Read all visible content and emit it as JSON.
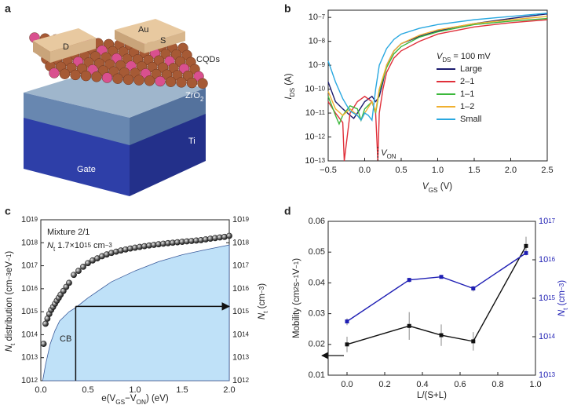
{
  "panel_labels": [
    "a",
    "b",
    "c",
    "d"
  ],
  "illustration": {
    "electrode_left": "D",
    "electrode_metal": "Au",
    "electrode_right": "S",
    "film": "CQDs",
    "dielectric": [
      "ZrO",
      "2"
    ],
    "gate": "Gate",
    "gate_metal": "Ti"
  },
  "chart_data": [
    {
      "type": "line",
      "xlabel": [
        "V",
        "GS",
        " (V)"
      ],
      "ylabel": [
        "I",
        "DS",
        " (A)"
      ],
      "ylog": true,
      "xlim": [
        -0.5,
        2.5
      ],
      "xticks": [
        {
          "value": -0.5,
          "label": "−0.5"
        },
        {
          "value": 0,
          "label": "0.0"
        },
        {
          "value": 0.5,
          "label": "0.5"
        },
        {
          "value": 1,
          "label": "1.0"
        },
        {
          "value": 1.5,
          "label": "1.5"
        },
        {
          "value": 2,
          "label": "2.0"
        },
        {
          "value": 2.5,
          "label": "2.5"
        }
      ],
      "ylim": [
        1e-13,
        2e-07
      ],
      "yticks": [
        {
          "value": 1e-13,
          "label": [
            "10",
            "−13"
          ]
        },
        {
          "value": 1e-12,
          "label": [
            "10",
            "−12"
          ]
        },
        {
          "value": 1e-11,
          "label": [
            "10",
            "−11"
          ]
        },
        {
          "value": 1e-10,
          "label": [
            "10",
            "−10"
          ]
        },
        {
          "value": 1e-09,
          "label": [
            "10",
            "−9"
          ]
        },
        {
          "value": 1e-08,
          "label": [
            "10",
            "−8"
          ]
        },
        {
          "value": 1e-07,
          "label": [
            "10",
            "−7"
          ]
        }
      ],
      "legend_title": [
        "V",
        "DS",
        " = 100 mV"
      ],
      "von": 0.18,
      "von_label": [
        "V",
        "ON"
      ],
      "series": [
        {
          "name": "Large",
          "color": "#1c1c6e",
          "x": [
            -0.5,
            -0.4,
            -0.3,
            -0.2,
            -0.15,
            -0.1,
            0,
            0.1,
            0.15,
            0.2,
            0.25,
            0.3,
            0.4,
            0.5,
            0.75,
            1,
            1.25,
            1.5,
            2,
            2.5
          ],
          "values": [
            2e-10,
            3e-11,
            1.5e-11,
            8e-12,
            6e-12,
            1e-11,
            3e-11,
            5e-11,
            3e-11,
            5e-11,
            2e-10,
            1e-09,
            4e-09,
            8e-09,
            1.6e-08,
            2.7e-08,
            4e-08,
            5.5e-08,
            9e-08,
            1.4e-07
          ]
        },
        {
          "name": "2–1",
          "color": "#e0303a",
          "x": [
            -0.5,
            -0.4,
            -0.3,
            -0.28,
            -0.2,
            -0.1,
            0,
            0.1,
            0.15,
            0.18,
            0.2,
            0.25,
            0.3,
            0.4,
            0.5,
            0.75,
            1,
            1.5,
            2,
            2.5
          ],
          "values": [
            3e-11,
            1e-11,
            4e-12,
            1e-13,
            1e-11,
            3e-11,
            5e-11,
            3e-11,
            1e-11,
            1e-13,
            1e-11,
            1e-10,
            5e-10,
            2e-09,
            4e-09,
            1e-08,
            2e-08,
            4e-08,
            6e-08,
            8e-08
          ]
        },
        {
          "name": "1–1",
          "color": "#3cb83c",
          "x": [
            -0.5,
            -0.4,
            -0.35,
            -0.3,
            -0.2,
            -0.1,
            -0.05,
            0,
            0.1,
            0.15,
            0.2,
            0.3,
            0.4,
            0.5,
            0.75,
            1,
            1.5,
            2,
            2.5
          ],
          "values": [
            5e-11,
            8e-12,
            3.5e-12,
            8e-12,
            2e-11,
            1.5e-11,
            5e-12,
            1.5e-11,
            3e-11,
            1e-11,
            8e-11,
            8e-10,
            3e-09,
            6e-09,
            1.5e-08,
            2.5e-08,
            5e-08,
            7e-08,
            9e-08
          ]
        },
        {
          "name": "1–2",
          "color": "#f0b030",
          "x": [
            -0.5,
            -0.4,
            -0.3,
            -0.2,
            -0.1,
            -0.05,
            0,
            0.1,
            0.15,
            0.2,
            0.3,
            0.4,
            0.5,
            0.75,
            1,
            1.5,
            2,
            2.5
          ],
          "values": [
            8e-11,
            1.5e-11,
            8e-12,
            1.5e-11,
            8e-12,
            5e-12,
            1e-11,
            3e-11,
            1.2e-11,
            1e-10,
            1e-09,
            4e-09,
            8e-09,
            1.8e-08,
            3e-08,
            5.5e-08,
            8e-08,
            1.1e-07
          ]
        },
        {
          "name": "Small",
          "color": "#29a8e0",
          "x": [
            -0.5,
            -0.4,
            -0.3,
            -0.2,
            -0.1,
            -0.05,
            0,
            0.05,
            0.1,
            0.15,
            0.2,
            0.3,
            0.4,
            0.5,
            0.75,
            1,
            1.5,
            2,
            2.5
          ],
          "values": [
            1.5e-09,
            2e-10,
            4e-11,
            1.2e-11,
            8e-12,
            5e-12,
            1e-11,
            8e-12,
            5e-12,
            1e-10,
            1e-09,
            5e-09,
            1.2e-08,
            2e-08,
            3.5e-08,
            5e-08,
            8e-08,
            1.1e-07,
            1.5e-07
          ]
        }
      ]
    },
    {
      "type": "scatter",
      "xlabel": [
        "e(V",
        "GS",
        "−V",
        "ON",
        ") (eV)"
      ],
      "ylabel": [
        "N",
        "t",
        " distribution (cm",
        "−3",
        "eV",
        "−1",
        ")"
      ],
      "y2label": [
        "N",
        "t",
        " (cm",
        "−3",
        ")"
      ],
      "annotations": [
        "Mixture 2/1",
        [
          "N",
          "t",
          " 1.7×10",
          "15",
          " cm",
          "−3"
        ]
      ],
      "ylog": true,
      "y2log": true,
      "xlim": [
        0,
        2
      ],
      "xticks": [
        {
          "value": 0,
          "label": "0.0"
        },
        {
          "value": 0.5,
          "label": "0.5"
        },
        {
          "value": 1,
          "label": "1.0"
        },
        {
          "value": 1.5,
          "label": "1.5"
        },
        {
          "value": 2,
          "label": "2.0"
        }
      ],
      "ylim": [
        1000000000000.0,
        1e+19
      ],
      "yticks": [
        {
          "value": 1000000000000.0,
          "label": [
            "10",
            "12"
          ]
        },
        {
          "value": 10000000000000.0,
          "label": [
            "10",
            "13"
          ]
        },
        {
          "value": 100000000000000.0,
          "label": [
            "10",
            "14"
          ]
        },
        {
          "value": 1000000000000000.0,
          "label": [
            "10",
            "15"
          ]
        },
        {
          "value": 1e+16,
          "label": [
            "10",
            "16"
          ]
        },
        {
          "value": 1e+17,
          "label": [
            "10",
            "17"
          ]
        },
        {
          "value": 1e+18,
          "label": [
            "10",
            "18"
          ]
        },
        {
          "value": 1e+19,
          "label": [
            "10",
            "19"
          ]
        }
      ],
      "y2lim": [
        1000000000000.0,
        1e+19
      ],
      "y2ticks": [
        {
          "value": 1000000000000.0,
          "label": [
            "10",
            "12"
          ]
        },
        {
          "value": 10000000000000.0,
          "label": [
            "10",
            "13"
          ]
        },
        {
          "value": 100000000000000.0,
          "label": [
            "10",
            "14"
          ]
        },
        {
          "value": 1000000000000000.0,
          "label": [
            "10",
            "15"
          ]
        },
        {
          "value": 1e+16,
          "label": [
            "10",
            "16"
          ]
        },
        {
          "value": 1e+17,
          "label": [
            "10",
            "17"
          ]
        },
        {
          "value": 1e+18,
          "label": [
            "10",
            "18"
          ]
        },
        {
          "value": 1e+19,
          "label": [
            "10",
            "19"
          ]
        }
      ],
      "arrow": {
        "x": 0.37,
        "y": 1700000000000000.0
      },
      "series": [
        {
          "name": "CB",
          "type": "area",
          "color": "#bfe1f8",
          "x": [
            0.02,
            0.05,
            0.1,
            0.15,
            0.2,
            0.3,
            0.37,
            0.5,
            0.75,
            1,
            1.25,
            1.5,
            1.75,
            2
          ],
          "values": [
            1000000000000.0,
            5000000000000.0,
            40000000000000.0,
            150000000000000.0,
            400000000000000.0,
            1000000000000000.0,
            1500000000000000.0,
            4000000000000000.0,
            2e+16,
            6e+16,
            1.5e+17,
            3e+17,
            5e+17,
            8e+17
          ]
        },
        {
          "type": "points",
          "color": "#222",
          "x": [
            0.03,
            0.05,
            0.07,
            0.09,
            0.11,
            0.13,
            0.15,
            0.17,
            0.19,
            0.21,
            0.24,
            0.27,
            0.3,
            0.35,
            0.4,
            0.45,
            0.5,
            0.55,
            0.6,
            0.65,
            0.7,
            0.75,
            0.8,
            0.85,
            0.9,
            0.95,
            1,
            1.05,
            1.1,
            1.15,
            1.2,
            1.25,
            1.3,
            1.35,
            1.4,
            1.45,
            1.5,
            1.55,
            1.6,
            1.65,
            1.7,
            1.75,
            1.8,
            1.85,
            1.9,
            1.95,
            2
          ],
          "values": [
            40000000000000.0,
            300000000000000.0,
            500000000000000.0,
            800000000000000.0,
            1200000000000000.0,
            1600000000000000.0,
            2200000000000000.0,
            3000000000000000.0,
            4000000000000000.0,
            5500000000000000.0,
            8000000000000000.0,
            1.2e+16,
            1.8e+16,
            4e+16,
            6e+16,
            9e+16,
            1.3e+17,
            1.7e+17,
            2.1e+17,
            2.6e+17,
            3.1e+17,
            3.6e+17,
            4.1e+17,
            4.6e+17,
            5.1e+17,
            5.6e+17,
            6.1e+17,
            6.6e+17,
            7.1e+17,
            7.6e+17,
            8.1e+17,
            8.6e+17,
            9.1e+17,
            9.6e+17,
            1e+18,
            1.05e+18,
            1.1e+18,
            1.15e+18,
            1.2e+18,
            1.25e+18,
            1.3e+18,
            1.4e+18,
            1.5e+18,
            1.6e+18,
            1.7e+18,
            1.8e+18,
            2e+18
          ]
        }
      ]
    },
    {
      "type": "line",
      "xlabel": "L/(S+L)",
      "ylabel": [
        "Mobility (cm",
        "2",
        "s",
        "−1",
        "V",
        "−1",
        ")"
      ],
      "y2label": [
        "N",
        "t",
        " (cm",
        "−3",
        ")"
      ],
      "y2log": true,
      "markers": true,
      "x": [
        0,
        0.33,
        0.5,
        0.67,
        0.95
      ],
      "xlim": [
        -0.1,
        1
      ],
      "xticks": [
        {
          "value": 0,
          "label": "0.0"
        },
        {
          "value": 0.2,
          "label": "0.2"
        },
        {
          "value": 0.4,
          "label": "0.4"
        },
        {
          "value": 0.6,
          "label": "0.6"
        },
        {
          "value": 0.8,
          "label": "0.8"
        },
        {
          "value": 1,
          "label": "1.0"
        }
      ],
      "ylim": [
        0.01,
        0.06
      ],
      "yticks": [
        0.01,
        0.02,
        0.03,
        0.04,
        0.05,
        0.06
      ],
      "y2lim": [
        10000000000000.0,
        1e+17
      ],
      "y2ticks": [
        {
          "value": 10000000000000.0,
          "label": [
            "10",
            "13"
          ]
        },
        {
          "value": 100000000000000.0,
          "label": [
            "10",
            "14"
          ]
        },
        {
          "value": 1000000000000000.0,
          "label": [
            "10",
            "15"
          ]
        },
        {
          "value": 1e+16,
          "label": [
            "10",
            "16"
          ]
        },
        {
          "value": 1e+17,
          "label": [
            "10",
            "17"
          ]
        }
      ],
      "series": [
        {
          "color": "#111",
          "values": [
            0.02,
            0.026,
            0.023,
            0.021,
            0.052
          ],
          "errors": [
            0.0025,
            0.0045,
            0.0035,
            0.003,
            0.003
          ]
        },
        {
          "color": "#1f1fb4",
          "axis": "y2",
          "values": [
            250000000000000.0,
            3000000000000000.0,
            3600000000000000.0,
            1800000000000000.0,
            1.5e+16
          ],
          "errors": [
            50000000000000.0,
            400000000000000.0,
            300000000000000.0,
            300000000000000.0,
            2000000000000000.0
          ]
        }
      ]
    }
  ]
}
